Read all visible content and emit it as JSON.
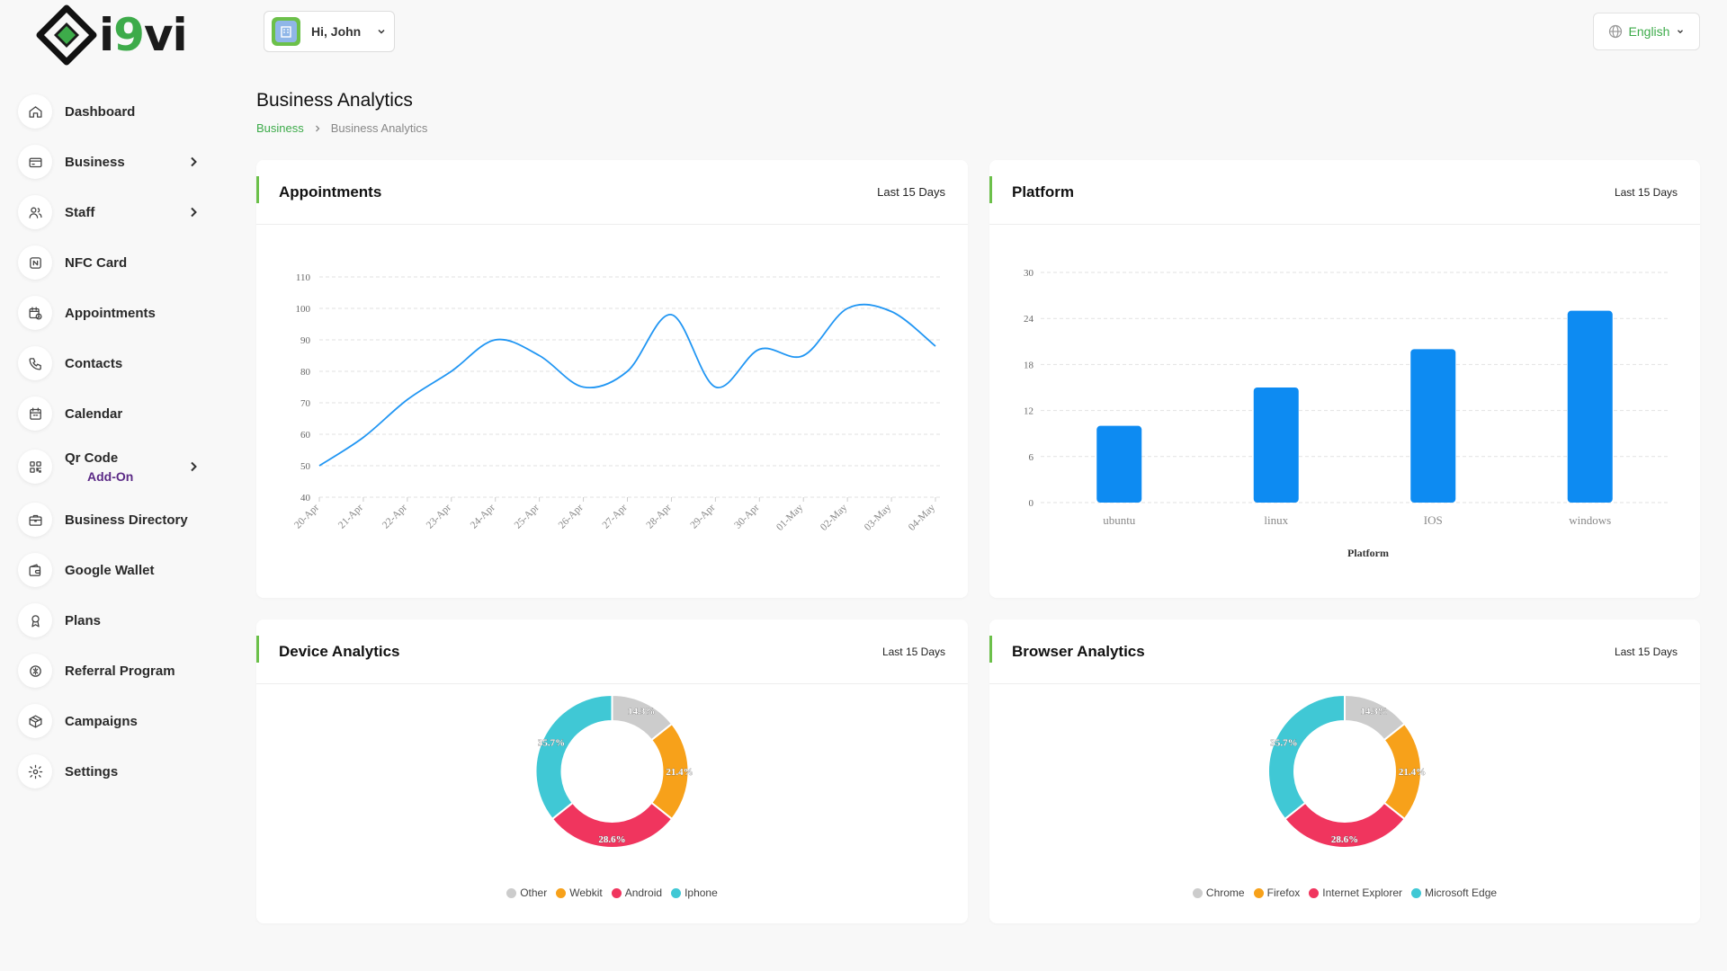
{
  "brand": {
    "logo_text_a": "i",
    "logo_text_b": "9",
    "logo_text_c": "vi"
  },
  "header": {
    "greeting": "Hi, John",
    "language": "English"
  },
  "page": {
    "title": "Business Analytics",
    "breadcrumb": [
      "Business",
      "Business Analytics"
    ]
  },
  "sidebar": {
    "items": [
      {
        "label": "Dashboard",
        "icon": "home-icon"
      },
      {
        "label": "Business",
        "icon": "card-icon",
        "chevron": true
      },
      {
        "label": "Staff",
        "icon": "users-icon",
        "chevron": true
      },
      {
        "label": "NFC Card",
        "icon": "nfc-icon"
      },
      {
        "label": "Appointments",
        "icon": "calendar-clock-icon"
      },
      {
        "label": "Contacts",
        "icon": "phone-icon"
      },
      {
        "label": "Calendar",
        "icon": "calendar-icon"
      },
      {
        "label": "Qr Code",
        "icon": "qr-icon",
        "chevron": true,
        "sub": "Add-On"
      },
      {
        "label": "Business Directory",
        "icon": "briefcase-icon"
      },
      {
        "label": "Google Wallet",
        "icon": "wallet-icon"
      },
      {
        "label": "Plans",
        "icon": "award-icon"
      },
      {
        "label": "Referral Program",
        "icon": "referral-icon"
      },
      {
        "label": "Campaigns",
        "icon": "box-icon"
      },
      {
        "label": "Settings",
        "icon": "gear-icon"
      }
    ]
  },
  "cards": {
    "appointments": {
      "title": "Appointments",
      "period": "Last 15 Days"
    },
    "platform": {
      "title": "Platform",
      "period": "Last 15 Days"
    },
    "device": {
      "title": "Device Analytics",
      "period": "Last 15 Days"
    },
    "browser": {
      "title": "Browser Analytics",
      "period": "Last 15 Days"
    }
  },
  "colors": {
    "accent": "#6cc04a",
    "line": "#2196f3",
    "bar": "#0d8bf2",
    "grey": "#cccccc",
    "orange": "#f7a11a",
    "pink": "#f0355e",
    "cyan": "#40c8d5"
  },
  "chart_data": [
    {
      "type": "line",
      "categories": [
        "20-Apr",
        "21-Apr",
        "22-Apr",
        "23-Apr",
        "24-Apr",
        "25-Apr",
        "26-Apr",
        "27-Apr",
        "28-Apr",
        "29-Apr",
        "30-Apr",
        "01-May",
        "02-May",
        "03-May",
        "04-May"
      ],
      "series": [
        {
          "values": [
            50,
            59,
            71,
            80,
            90,
            85,
            75,
            80,
            98,
            75,
            87,
            85,
            100,
            99,
            88
          ]
        }
      ],
      "ylim": [
        40,
        110
      ],
      "yticks": [
        40,
        50,
        60,
        70,
        80,
        90,
        100,
        110
      ],
      "grid": true
    },
    {
      "type": "bar",
      "categories": [
        "ubuntu",
        "linux",
        "IOS",
        "windows"
      ],
      "values": [
        10,
        15,
        20,
        25
      ],
      "xlabel": "Platform",
      "ylim": [
        0,
        30
      ],
      "yticks": [
        0,
        6,
        12,
        18,
        24,
        30
      ],
      "grid": true
    },
    {
      "type": "pie",
      "labels": [
        "Other",
        "Webkit",
        "Android",
        "Iphone"
      ],
      "values": [
        14.3,
        21.4,
        28.6,
        35.7
      ],
      "value_labels": [
        "14.3%",
        "21.4%",
        "28.6%",
        "35.7%"
      ],
      "legend": "bottom"
    },
    {
      "type": "pie",
      "labels": [
        "Chrome",
        "Firefox",
        "Internet Explorer",
        "Microsoft Edge"
      ],
      "values": [
        14.3,
        21.4,
        28.6,
        35.7
      ],
      "value_labels": [
        "14.3%",
        "21.4%",
        "28.6%",
        "35.7%"
      ],
      "legend": "bottom"
    }
  ]
}
